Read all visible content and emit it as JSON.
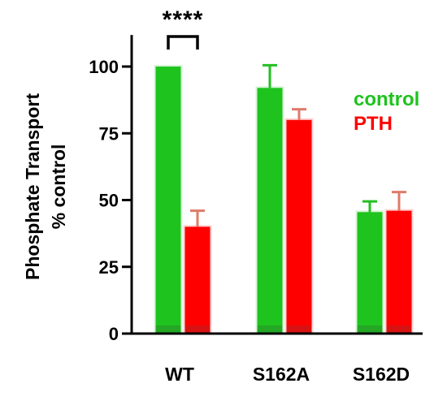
{
  "chart_data": {
    "type": "bar",
    "title": "",
    "xlabel": "",
    "ylabel_lines": [
      "Phosphate Transport",
      "% control"
    ],
    "ylim": [
      0,
      110
    ],
    "yticks": [
      0,
      25,
      50,
      75,
      100
    ],
    "categories": [
      "WT",
      "S162A",
      "S162D"
    ],
    "series": [
      {
        "name": "control",
        "color": "#1ec31e",
        "error_color": "#22c022",
        "values": [
          100,
          92,
          45.5
        ],
        "errors": [
          0,
          8.5,
          4
        ]
      },
      {
        "name": "PTH",
        "color": "#ff0000",
        "error_color": "#e07a6a",
        "values": [
          40,
          80,
          46
        ],
        "errors": [
          6,
          4,
          7
        ]
      }
    ],
    "legend": {
      "placement": "right"
    },
    "significance": {
      "category": "WT",
      "label": "****"
    },
    "grid": false
  }
}
